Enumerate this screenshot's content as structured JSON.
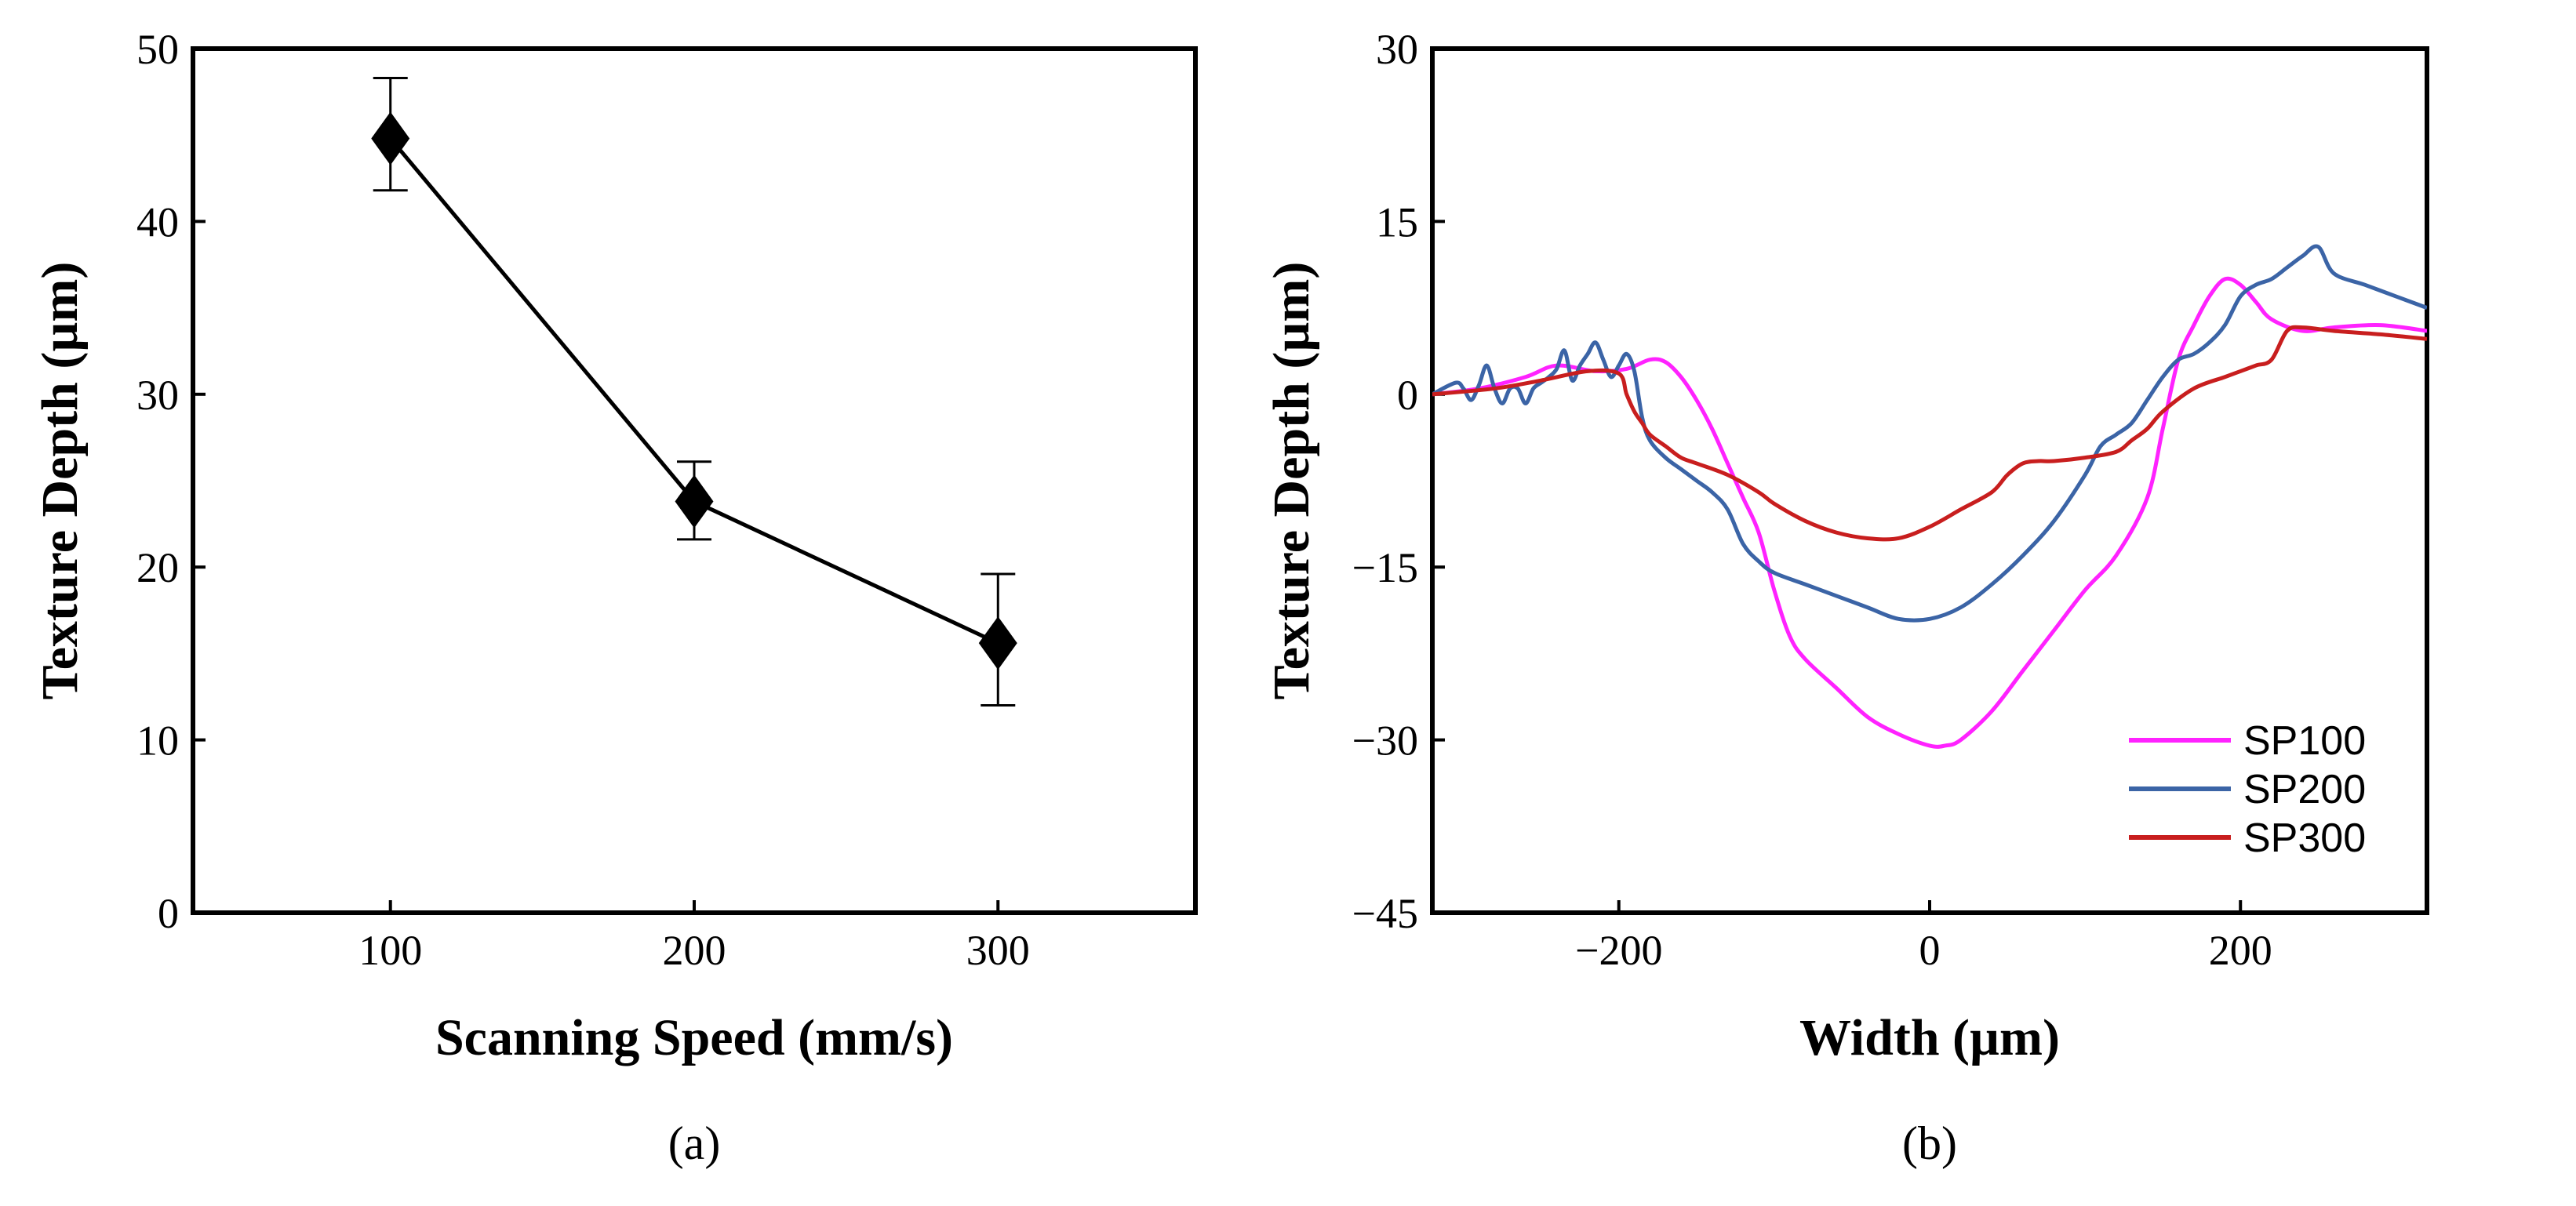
{
  "chart_data": [
    {
      "type": "line",
      "panel_label": "(a)",
      "xlabel": "Scanning Speed (mm/s)",
      "ylabel": "Texture Depth (µm)",
      "xlim": [
        35,
        365
      ],
      "ylim": [
        0,
        50
      ],
      "xticks": [
        100,
        200,
        300
      ],
      "yticks": [
        0,
        10,
        20,
        30,
        40,
        50
      ],
      "grid": false,
      "series": [
        {
          "name": "Texture Depth",
          "color": "#000000",
          "marker": "diamond",
          "x": [
            100,
            200,
            300
          ],
          "y": [
            44.8,
            23.8,
            15.6
          ],
          "err_low": [
            41.8,
            21.6,
            12.0
          ],
          "err_high": [
            48.3,
            26.1,
            19.6
          ]
        }
      ]
    },
    {
      "type": "line",
      "panel_label": "(b)",
      "xlabel": "Width (µm)",
      "ylabel": "Texture Depth (µm)",
      "xlim": [
        -320,
        320
      ],
      "ylim": [
        -45,
        30
      ],
      "xticks": [
        -200,
        0,
        200
      ],
      "yticks": [
        -45,
        -30,
        -15,
        0,
        15,
        30
      ],
      "grid": false,
      "legend_position": "bottom-right",
      "series": [
        {
          "name": "SP100",
          "color": "#ff22ff",
          "x": [
            -320,
            -290,
            -260,
            -240,
            -215,
            -195,
            -180,
            -170,
            -160,
            -150,
            -140,
            -130,
            -120,
            -110,
            -100,
            -90,
            -80,
            -60,
            -40,
            -20,
            0,
            10,
            20,
            40,
            60,
            80,
            100,
            120,
            140,
            150,
            160,
            170,
            180,
            190,
            200,
            210,
            220,
            240,
            260,
            290,
            320
          ],
          "y": [
            0,
            0.5,
            1.5,
            2.5,
            2,
            2.2,
            3,
            2.8,
            1.5,
            -0.5,
            -3,
            -6,
            -9,
            -12,
            -17,
            -21,
            -23,
            -25.5,
            -28,
            -29.5,
            -30.5,
            -30.5,
            -30,
            -27.5,
            -24,
            -20.5,
            -17,
            -14,
            -9,
            -3,
            3,
            6,
            8.5,
            10,
            9.5,
            8,
            6.5,
            5.5,
            5.8,
            6,
            5.5
          ]
        },
        {
          "name": "SP200",
          "color": "#3b64a6",
          "x": [
            -320,
            -305,
            -300,
            -295,
            -290,
            -285,
            -280,
            -275,
            -270,
            -265,
            -260,
            -255,
            -250,
            -245,
            -240,
            -235,
            -230,
            -225,
            -220,
            -215,
            -210,
            -205,
            -200,
            -195,
            -190,
            -185,
            -180,
            -170,
            -160,
            -150,
            -140,
            -130,
            -120,
            -110,
            -100,
            -80,
            -60,
            -40,
            -20,
            0,
            20,
            40,
            60,
            80,
            100,
            110,
            120,
            130,
            140,
            150,
            160,
            170,
            180,
            190,
            200,
            210,
            220,
            230,
            240,
            250,
            260,
            280,
            300,
            320
          ],
          "y": [
            0,
            1,
            0.5,
            -0.5,
            0.8,
            2.5,
            0.5,
            -0.8,
            0.5,
            0.5,
            -0.8,
            0.5,
            1,
            1.5,
            2.2,
            3.8,
            1.2,
            2.5,
            3.5,
            4.5,
            3,
            1.5,
            2.5,
            3.5,
            2,
            -2,
            -4,
            -5.5,
            -6.5,
            -7.5,
            -8.5,
            -10,
            -13,
            -14.5,
            -15.5,
            -16.5,
            -17.5,
            -18.5,
            -19.5,
            -19.5,
            -18.5,
            -16.5,
            -14,
            -11,
            -7,
            -4.5,
            -3.5,
            -2.5,
            -0.5,
            1.5,
            3,
            3.5,
            4.5,
            6,
            8.5,
            9.5,
            10,
            11,
            12,
            12.8,
            10.5,
            9.5,
            8.5,
            7.5
          ]
        },
        {
          "name": "SP300",
          "color": "#c81e1e",
          "x": [
            -320,
            -280,
            -250,
            -220,
            -200,
            -195,
            -190,
            -185,
            -180,
            -170,
            -160,
            -150,
            -130,
            -110,
            -100,
            -80,
            -60,
            -40,
            -20,
            0,
            20,
            40,
            50,
            60,
            70,
            80,
            100,
            120,
            130,
            140,
            150,
            170,
            190,
            200,
            210,
            220,
            230,
            240,
            260,
            290,
            320
          ],
          "y": [
            0,
            0.5,
            1.2,
            2,
            1.8,
            0,
            -1.5,
            -2.5,
            -3.5,
            -4.5,
            -5.5,
            -6,
            -7,
            -8.5,
            -9.5,
            -11,
            -12,
            -12.5,
            -12.5,
            -11.5,
            -10,
            -8.5,
            -7,
            -6,
            -5.8,
            -5.8,
            -5.5,
            -5,
            -4,
            -3,
            -1.5,
            0.5,
            1.5,
            2,
            2.5,
            3,
            5.5,
            5.8,
            5.5,
            5.2,
            4.8
          ]
        }
      ]
    }
  ]
}
